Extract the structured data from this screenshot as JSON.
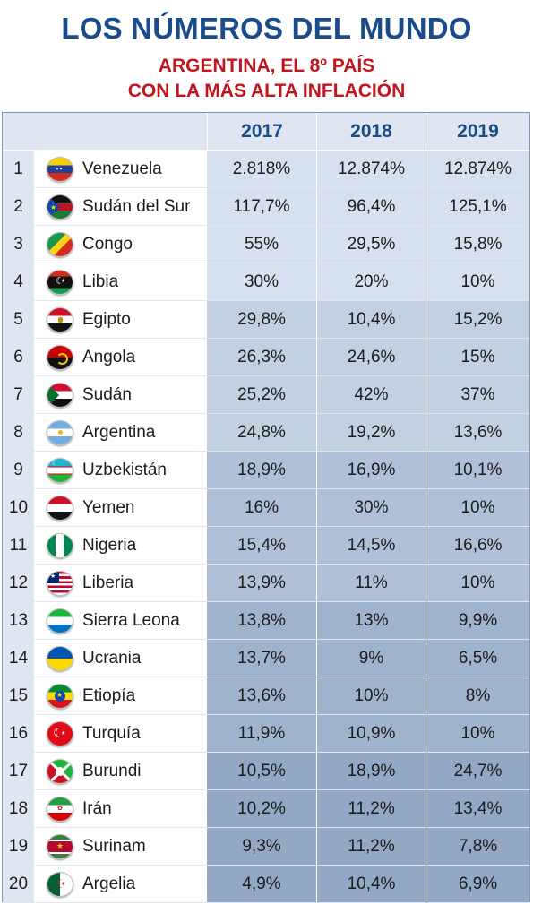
{
  "title": "LOS NÚMEROS DEL MUNDO",
  "subtitle_line1": "ARGENTINA, EL 8º PAÍS",
  "subtitle_line2": "CON LA MÁS ALTA INFLACIÓN",
  "chart_data": {
    "type": "table",
    "title": "LOS NÚMEROS DEL MUNDO",
    "subtitle": "ARGENTINA, EL 8º PAÍS CON LA MÁS ALTA INFLACIÓN",
    "columns": [
      "2017",
      "2018",
      "2019"
    ],
    "rows": [
      {
        "rank": "1",
        "country": "Venezuela",
        "flag": "venezuela-flag-icon",
        "values": [
          "2.818%",
          "12.874%",
          "12.874%"
        ]
      },
      {
        "rank": "2",
        "country": "Sudán del Sur",
        "flag": "south-sudan-flag-icon",
        "values": [
          "117,7%",
          "96,4%",
          "125,1%"
        ]
      },
      {
        "rank": "3",
        "country": "Congo",
        "flag": "congo-flag-icon",
        "values": [
          "55%",
          "29,5%",
          "15,8%"
        ]
      },
      {
        "rank": "4",
        "country": "Libia",
        "flag": "libya-flag-icon",
        "values": [
          "30%",
          "20%",
          "10%"
        ]
      },
      {
        "rank": "5",
        "country": "Egipto",
        "flag": "egypt-flag-icon",
        "values": [
          "29,8%",
          "10,4%",
          "15,2%"
        ]
      },
      {
        "rank": "6",
        "country": "Angola",
        "flag": "angola-flag-icon",
        "values": [
          "26,3%",
          "24,6%",
          "15%"
        ]
      },
      {
        "rank": "7",
        "country": "Sudán",
        "flag": "sudan-flag-icon",
        "values": [
          "25,2%",
          "42%",
          "37%"
        ]
      },
      {
        "rank": "8",
        "country": "Argentina",
        "flag": "argentina-flag-icon",
        "values": [
          "24,8%",
          "19,2%",
          "13,6%"
        ]
      },
      {
        "rank": "9",
        "country": "Uzbekistán",
        "flag": "uzbekistan-flag-icon",
        "values": [
          "18,9%",
          "16,9%",
          "10,1%"
        ]
      },
      {
        "rank": "10",
        "country": "Yemen",
        "flag": "yemen-flag-icon",
        "values": [
          "16%",
          "30%",
          "10%"
        ]
      },
      {
        "rank": "11",
        "country": "Nigeria",
        "flag": "nigeria-flag-icon",
        "values": [
          "15,4%",
          "14,5%",
          "16,6%"
        ]
      },
      {
        "rank": "12",
        "country": "Liberia",
        "flag": "liberia-flag-icon",
        "values": [
          "13,9%",
          "11%",
          "10%"
        ]
      },
      {
        "rank": "13",
        "country": "Sierra Leona",
        "flag": "sierra-leone-flag-icon",
        "values": [
          "13,8%",
          "13%",
          "9,9%"
        ]
      },
      {
        "rank": "14",
        "country": "Ucrania",
        "flag": "ukraine-flag-icon",
        "values": [
          "13,7%",
          "9%",
          "6,5%"
        ]
      },
      {
        "rank": "15",
        "country": "Etiopía",
        "flag": "ethiopia-flag-icon",
        "values": [
          "13,6%",
          "10%",
          "8%"
        ]
      },
      {
        "rank": "16",
        "country": "Turquía",
        "flag": "turkey-flag-icon",
        "values": [
          "11,9%",
          "10,9%",
          "10%"
        ]
      },
      {
        "rank": "17",
        "country": "Burundi",
        "flag": "burundi-flag-icon",
        "values": [
          "10,5%",
          "18,9%",
          "24,7%"
        ]
      },
      {
        "rank": "18",
        "country": "Irán",
        "flag": "iran-flag-icon",
        "values": [
          "10,2%",
          "11,2%",
          "13,4%"
        ]
      },
      {
        "rank": "19",
        "country": "Surinam",
        "flag": "suriname-flag-icon",
        "values": [
          "9,3%",
          "11,2%",
          "7,8%"
        ]
      },
      {
        "rank": "20",
        "country": "Argelia",
        "flag": "algeria-flag-icon",
        "values": [
          "4,9%",
          "10,4%",
          "6,9%"
        ]
      }
    ]
  }
}
